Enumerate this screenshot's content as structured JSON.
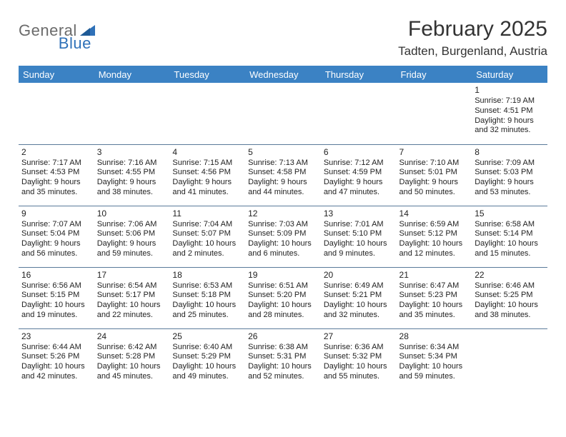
{
  "logo": {
    "general": "General",
    "blue": "Blue"
  },
  "title": "February 2025",
  "location": "Tadten, Burgenland, Austria",
  "colors": {
    "header_bg": "#3b82c4",
    "header_fg": "#ffffff",
    "rule": "#5a7a9a",
    "logo_gray": "#6b6b6b",
    "logo_blue": "#2f71b8"
  },
  "day_names": [
    "Sunday",
    "Monday",
    "Tuesday",
    "Wednesday",
    "Thursday",
    "Friday",
    "Saturday"
  ],
  "weeks": [
    [
      null,
      null,
      null,
      null,
      null,
      null,
      {
        "n": "1",
        "sunrise": "Sunrise: 7:19 AM",
        "sunset": "Sunset: 4:51 PM",
        "daylight": "Daylight: 9 hours and 32 minutes."
      }
    ],
    [
      {
        "n": "2",
        "sunrise": "Sunrise: 7:17 AM",
        "sunset": "Sunset: 4:53 PM",
        "daylight": "Daylight: 9 hours and 35 minutes."
      },
      {
        "n": "3",
        "sunrise": "Sunrise: 7:16 AM",
        "sunset": "Sunset: 4:55 PM",
        "daylight": "Daylight: 9 hours and 38 minutes."
      },
      {
        "n": "4",
        "sunrise": "Sunrise: 7:15 AM",
        "sunset": "Sunset: 4:56 PM",
        "daylight": "Daylight: 9 hours and 41 minutes."
      },
      {
        "n": "5",
        "sunrise": "Sunrise: 7:13 AM",
        "sunset": "Sunset: 4:58 PM",
        "daylight": "Daylight: 9 hours and 44 minutes."
      },
      {
        "n": "6",
        "sunrise": "Sunrise: 7:12 AM",
        "sunset": "Sunset: 4:59 PM",
        "daylight": "Daylight: 9 hours and 47 minutes."
      },
      {
        "n": "7",
        "sunrise": "Sunrise: 7:10 AM",
        "sunset": "Sunset: 5:01 PM",
        "daylight": "Daylight: 9 hours and 50 minutes."
      },
      {
        "n": "8",
        "sunrise": "Sunrise: 7:09 AM",
        "sunset": "Sunset: 5:03 PM",
        "daylight": "Daylight: 9 hours and 53 minutes."
      }
    ],
    [
      {
        "n": "9",
        "sunrise": "Sunrise: 7:07 AM",
        "sunset": "Sunset: 5:04 PM",
        "daylight": "Daylight: 9 hours and 56 minutes."
      },
      {
        "n": "10",
        "sunrise": "Sunrise: 7:06 AM",
        "sunset": "Sunset: 5:06 PM",
        "daylight": "Daylight: 9 hours and 59 minutes."
      },
      {
        "n": "11",
        "sunrise": "Sunrise: 7:04 AM",
        "sunset": "Sunset: 5:07 PM",
        "daylight": "Daylight: 10 hours and 2 minutes."
      },
      {
        "n": "12",
        "sunrise": "Sunrise: 7:03 AM",
        "sunset": "Sunset: 5:09 PM",
        "daylight": "Daylight: 10 hours and 6 minutes."
      },
      {
        "n": "13",
        "sunrise": "Sunrise: 7:01 AM",
        "sunset": "Sunset: 5:10 PM",
        "daylight": "Daylight: 10 hours and 9 minutes."
      },
      {
        "n": "14",
        "sunrise": "Sunrise: 6:59 AM",
        "sunset": "Sunset: 5:12 PM",
        "daylight": "Daylight: 10 hours and 12 minutes."
      },
      {
        "n": "15",
        "sunrise": "Sunrise: 6:58 AM",
        "sunset": "Sunset: 5:14 PM",
        "daylight": "Daylight: 10 hours and 15 minutes."
      }
    ],
    [
      {
        "n": "16",
        "sunrise": "Sunrise: 6:56 AM",
        "sunset": "Sunset: 5:15 PM",
        "daylight": "Daylight: 10 hours and 19 minutes."
      },
      {
        "n": "17",
        "sunrise": "Sunrise: 6:54 AM",
        "sunset": "Sunset: 5:17 PM",
        "daylight": "Daylight: 10 hours and 22 minutes."
      },
      {
        "n": "18",
        "sunrise": "Sunrise: 6:53 AM",
        "sunset": "Sunset: 5:18 PM",
        "daylight": "Daylight: 10 hours and 25 minutes."
      },
      {
        "n": "19",
        "sunrise": "Sunrise: 6:51 AM",
        "sunset": "Sunset: 5:20 PM",
        "daylight": "Daylight: 10 hours and 28 minutes."
      },
      {
        "n": "20",
        "sunrise": "Sunrise: 6:49 AM",
        "sunset": "Sunset: 5:21 PM",
        "daylight": "Daylight: 10 hours and 32 minutes."
      },
      {
        "n": "21",
        "sunrise": "Sunrise: 6:47 AM",
        "sunset": "Sunset: 5:23 PM",
        "daylight": "Daylight: 10 hours and 35 minutes."
      },
      {
        "n": "22",
        "sunrise": "Sunrise: 6:46 AM",
        "sunset": "Sunset: 5:25 PM",
        "daylight": "Daylight: 10 hours and 38 minutes."
      }
    ],
    [
      {
        "n": "23",
        "sunrise": "Sunrise: 6:44 AM",
        "sunset": "Sunset: 5:26 PM",
        "daylight": "Daylight: 10 hours and 42 minutes."
      },
      {
        "n": "24",
        "sunrise": "Sunrise: 6:42 AM",
        "sunset": "Sunset: 5:28 PM",
        "daylight": "Daylight: 10 hours and 45 minutes."
      },
      {
        "n": "25",
        "sunrise": "Sunrise: 6:40 AM",
        "sunset": "Sunset: 5:29 PM",
        "daylight": "Daylight: 10 hours and 49 minutes."
      },
      {
        "n": "26",
        "sunrise": "Sunrise: 6:38 AM",
        "sunset": "Sunset: 5:31 PM",
        "daylight": "Daylight: 10 hours and 52 minutes."
      },
      {
        "n": "27",
        "sunrise": "Sunrise: 6:36 AM",
        "sunset": "Sunset: 5:32 PM",
        "daylight": "Daylight: 10 hours and 55 minutes."
      },
      {
        "n": "28",
        "sunrise": "Sunrise: 6:34 AM",
        "sunset": "Sunset: 5:34 PM",
        "daylight": "Daylight: 10 hours and 59 minutes."
      },
      null
    ]
  ]
}
